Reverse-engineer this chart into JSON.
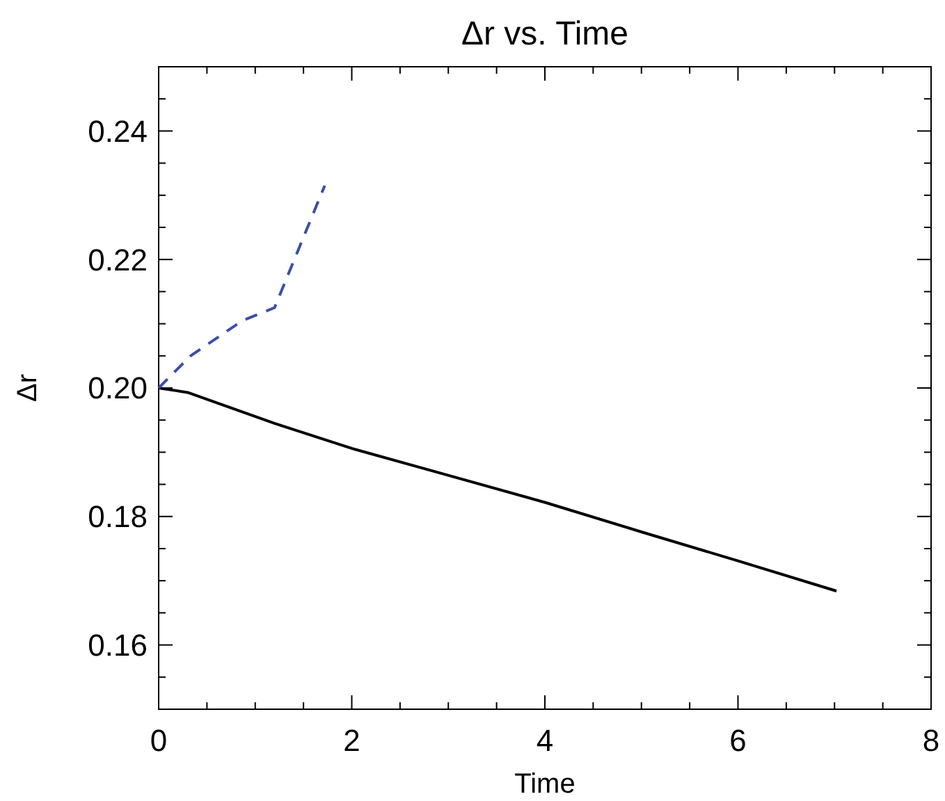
{
  "chart_data": {
    "type": "line",
    "title": "Δr vs. Time",
    "xlabel": "Time",
    "ylabel": "Δr",
    "xlim": [
      0,
      8
    ],
    "ylim": [
      0.15,
      0.25
    ],
    "xticks": [
      0,
      {
        "value": 0.5,
        "label": null
      },
      {
        "value": 1,
        "label": null
      },
      {
        "value": 1.5,
        "label": null
      },
      2,
      {
        "value": 2.5,
        "label": null
      },
      {
        "value": 3,
        "label": null
      },
      {
        "value": 3.5,
        "label": null
      },
      4,
      {
        "value": 4.5,
        "label": null
      },
      {
        "value": 5,
        "label": null
      },
      {
        "value": 5.5,
        "label": null
      },
      6,
      {
        "value": 6.5,
        "label": null
      },
      {
        "value": 7,
        "label": null
      },
      {
        "value": 7.5,
        "label": null
      },
      8
    ],
    "yticks": [
      {
        "value": 0.155,
        "label": null
      },
      {
        "value": 0.16,
        "label": "0.16"
      },
      {
        "value": 0.165,
        "label": null
      },
      {
        "value": 0.17,
        "label": null
      },
      {
        "value": 0.175,
        "label": null
      },
      {
        "value": 0.18,
        "label": "0.18"
      },
      {
        "value": 0.185,
        "label": null
      },
      {
        "value": 0.19,
        "label": null
      },
      {
        "value": 0.195,
        "label": null
      },
      {
        "value": 0.2,
        "label": "0.20"
      },
      {
        "value": 0.205,
        "label": null
      },
      {
        "value": 0.21,
        "label": null
      },
      {
        "value": 0.215,
        "label": null
      },
      {
        "value": 0.22,
        "label": "0.22"
      },
      {
        "value": 0.225,
        "label": null
      },
      {
        "value": 0.23,
        "label": null
      },
      {
        "value": 0.235,
        "label": null
      },
      {
        "value": 0.24,
        "label": "0.24"
      },
      {
        "value": 0.245,
        "label": null
      }
    ],
    "grid": false,
    "marker": "none",
    "series": [
      {
        "color": "#000000",
        "line_style": "solid",
        "x": [
          0,
          0.3,
          1.2,
          2,
          3,
          4,
          5,
          6,
          7.02
        ],
        "values": [
          0.2,
          0.1993,
          0.1945,
          0.1906,
          0.1864,
          0.1822,
          0.1776,
          0.1731,
          0.1684
        ]
      },
      {
        "color": "#3a4fa8",
        "line_style": "dashed",
        "x": [
          0,
          0.33,
          0.87,
          1.2,
          1.72
        ],
        "values": [
          0.2,
          0.205,
          0.2105,
          0.2125,
          0.2315
        ]
      }
    ]
  }
}
